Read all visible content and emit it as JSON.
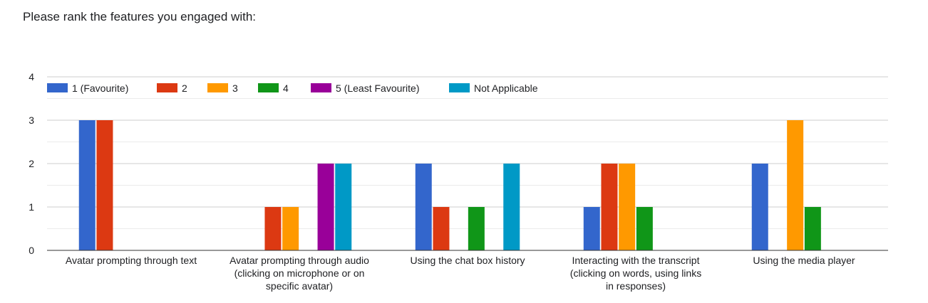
{
  "question": "Please rank the features you engaged with:",
  "chart_data": {
    "type": "bar",
    "title": "",
    "xlabel": "",
    "ylabel": "",
    "ylim": [
      0,
      4
    ],
    "y_ticks": [
      "0",
      "1",
      "2",
      "3",
      "4"
    ],
    "grid": true,
    "legend_position": "top",
    "categories": [
      [
        "Avatar prompting through text"
      ],
      [
        "Avatar prompting through audio",
        "(clicking on microphone or on",
        "specific avatar)"
      ],
      [
        "Using the chat box history"
      ],
      [
        "Interacting with the transcript",
        "(clicking on words, using links",
        "in responses)"
      ],
      [
        "Using the media player"
      ]
    ],
    "series": [
      {
        "name": "1 (Favourite)",
        "color": "#3366cc",
        "values": [
          3,
          0,
          2,
          1,
          2
        ]
      },
      {
        "name": "2",
        "color": "#dc3912",
        "values": [
          3,
          1,
          1,
          2,
          0
        ]
      },
      {
        "name": "3",
        "color": "#ff9900",
        "values": [
          0,
          1,
          0,
          2,
          3
        ]
      },
      {
        "name": "4",
        "color": "#109618",
        "values": [
          0,
          0,
          1,
          1,
          1
        ]
      },
      {
        "name": "5 (Least Favourite)",
        "color": "#990099",
        "values": [
          0,
          2,
          0,
          0,
          0
        ]
      },
      {
        "name": "Not Applicable",
        "color": "#0099c6",
        "values": [
          0,
          2,
          2,
          0,
          0
        ]
      }
    ]
  }
}
